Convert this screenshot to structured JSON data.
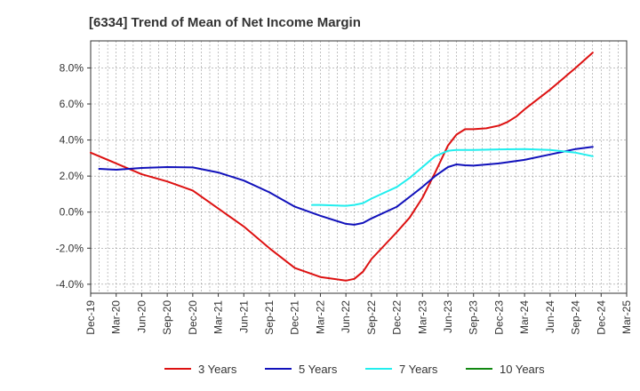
{
  "chart_data": {
    "type": "line",
    "title": "[6334]  Trend of Mean of Net Income Margin",
    "xlabel": "",
    "ylabel": "",
    "x": [
      "Dec-19",
      "Mar-20",
      "Jun-20",
      "Sep-20",
      "Dec-20",
      "Mar-21",
      "Jun-21",
      "Sep-21",
      "Dec-21",
      "Mar-22",
      "Jun-22",
      "Sep-22",
      "Dec-22",
      "Mar-23",
      "Jun-23",
      "Sep-23",
      "Dec-23",
      "Mar-24",
      "Jun-24",
      "Sep-24",
      "Dec-24",
      "Mar-25"
    ],
    "ylim": [
      -4.5,
      9.5
    ],
    "yticks": [
      8.0,
      6.0,
      4.0,
      2.0,
      0.0,
      -2.0,
      -4.0
    ],
    "ytick_labels": [
      "8.0%",
      "6.0%",
      "4.0%",
      "2.0%",
      "0.0%",
      "-2.0%",
      "-4.0%"
    ],
    "grid": true,
    "legend_position": "bottom",
    "series": [
      {
        "name": "3 Years",
        "color": "#dd1111",
        "points": [
          [
            0,
            3.3
          ],
          [
            1,
            2.7
          ],
          [
            2,
            2.1
          ],
          [
            3,
            1.7
          ],
          [
            4,
            1.2
          ],
          [
            5,
            0.2
          ],
          [
            6,
            -0.8
          ],
          [
            7,
            -2.0
          ],
          [
            8,
            -3.1
          ],
          [
            9,
            -3.6
          ],
          [
            10,
            -3.8
          ],
          [
            10.33,
            -3.7
          ],
          [
            10.67,
            -3.3
          ],
          [
            11,
            -2.6
          ],
          [
            12,
            -1.1
          ],
          [
            12.5,
            -0.3
          ],
          [
            13,
            0.8
          ],
          [
            13.5,
            2.2
          ],
          [
            14,
            3.7
          ],
          [
            14.33,
            4.3
          ],
          [
            14.67,
            4.6
          ],
          [
            15,
            4.6
          ],
          [
            15.5,
            4.65
          ],
          [
            16,
            4.8
          ],
          [
            16.33,
            5.0
          ],
          [
            16.67,
            5.3
          ],
          [
            17,
            5.7
          ],
          [
            18,
            6.8
          ],
          [
            19,
            8.0
          ],
          [
            19.67,
            8.85
          ]
        ]
      },
      {
        "name": "5 Years",
        "color": "#1111bb",
        "points": [
          [
            0.33,
            2.4
          ],
          [
            1,
            2.35
          ],
          [
            2,
            2.45
          ],
          [
            3,
            2.5
          ],
          [
            4,
            2.48
          ],
          [
            5,
            2.2
          ],
          [
            6,
            1.75
          ],
          [
            7,
            1.1
          ],
          [
            8,
            0.3
          ],
          [
            9,
            -0.2
          ],
          [
            10,
            -0.65
          ],
          [
            10.33,
            -0.7
          ],
          [
            10.67,
            -0.6
          ],
          [
            11,
            -0.35
          ],
          [
            12,
            0.3
          ],
          [
            12.5,
            0.85
          ],
          [
            13,
            1.4
          ],
          [
            13.5,
            2.0
          ],
          [
            14,
            2.5
          ],
          [
            14.33,
            2.65
          ],
          [
            14.67,
            2.6
          ],
          [
            15,
            2.58
          ],
          [
            16,
            2.7
          ],
          [
            17,
            2.9
          ],
          [
            18,
            3.2
          ],
          [
            19,
            3.5
          ],
          [
            19.67,
            3.62
          ]
        ]
      },
      {
        "name": "7 Years",
        "color": "#22eeee",
        "points": [
          [
            8.67,
            0.4
          ],
          [
            9,
            0.4
          ],
          [
            10,
            0.35
          ],
          [
            10.33,
            0.4
          ],
          [
            10.67,
            0.5
          ],
          [
            11,
            0.75
          ],
          [
            12,
            1.4
          ],
          [
            12.5,
            1.9
          ],
          [
            13,
            2.5
          ],
          [
            13.5,
            3.1
          ],
          [
            14,
            3.4
          ],
          [
            14.33,
            3.45
          ],
          [
            15,
            3.45
          ],
          [
            16,
            3.48
          ],
          [
            17,
            3.5
          ],
          [
            18,
            3.45
          ],
          [
            19,
            3.3
          ],
          [
            19.67,
            3.1
          ]
        ]
      },
      {
        "name": "10 Years",
        "color": "#118811",
        "points": []
      }
    ]
  }
}
